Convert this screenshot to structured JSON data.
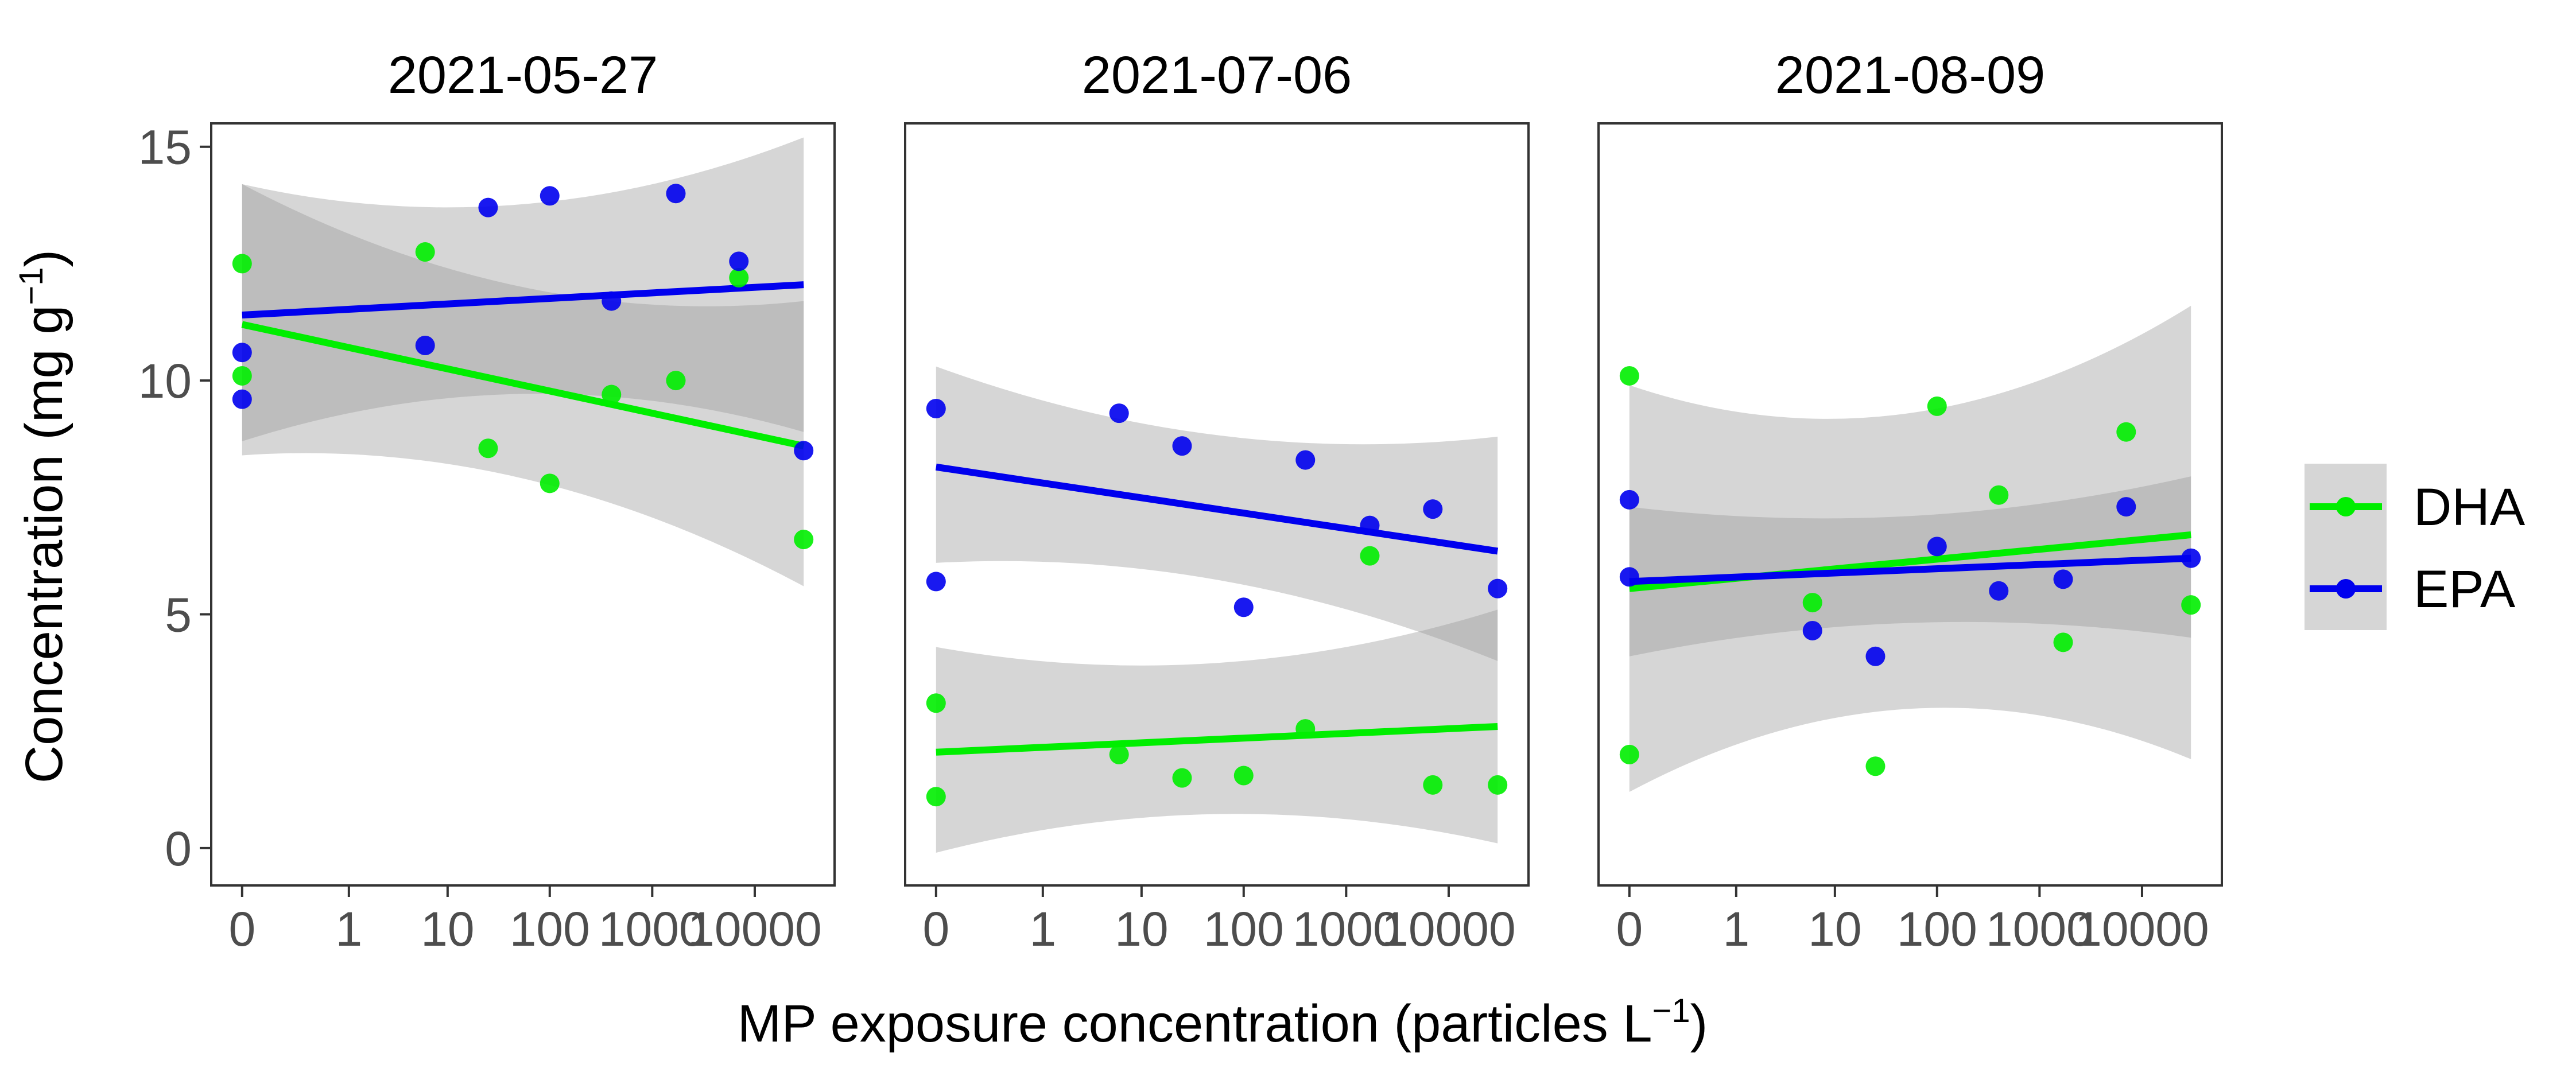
{
  "chart_data": {
    "type": "scatter",
    "xlabel": "MP exposure concentration (particles L",
    "xlabel_sup": "−1",
    "xlabel_end": ")",
    "ylabel": "Concentration (mg  g",
    "ylabel_sup": "−1",
    "ylabel_end": ")",
    "y_range": [
      -0.8,
      15.5
    ],
    "y_ticks": [
      0,
      5,
      10,
      15
    ],
    "x_scale": "log10(x+0.1)",
    "x_ticks": [
      0,
      1,
      10,
      100,
      1000,
      10000
    ],
    "x_tick_labels": [
      "0",
      "1",
      "10",
      "100",
      "1000",
      "10000"
    ],
    "x_range": [
      0,
      30000
    ],
    "x_levels": [
      0,
      6,
      25,
      100,
      400,
      1700,
      7000,
      30000
    ],
    "colors": {
      "DHA": "#00ee00",
      "EPA": "#0000ee",
      "band": "#999999"
    },
    "legend": {
      "position": "right",
      "entries": [
        "DHA",
        "EPA"
      ]
    },
    "panels": [
      {
        "title": "2021-05-27",
        "series": [
          {
            "name": "DHA",
            "points": [
              [
                0,
                12.5
              ],
              [
                0,
                10.1
              ],
              [
                6,
                12.75
              ],
              [
                25,
                8.55
              ],
              [
                100,
                7.8
              ],
              [
                400,
                9.7
              ],
              [
                1700,
                10.0
              ],
              [
                7000,
                12.2
              ],
              [
                30000,
                6.6
              ]
            ],
            "fit": [
              11.2,
              8.6
            ],
            "band_start": [
              8.4,
              14.2
            ],
            "band_end": [
              5.6,
              11.7
            ]
          },
          {
            "name": "EPA",
            "points": [
              [
                0,
                10.6
              ],
              [
                0,
                9.6
              ],
              [
                6,
                10.75
              ],
              [
                25,
                13.7
              ],
              [
                100,
                13.95
              ],
              [
                400,
                11.7
              ],
              [
                1700,
                14.0
              ],
              [
                7000,
                12.55
              ],
              [
                30000,
                8.5
              ]
            ],
            "fit": [
              11.4,
              12.05
            ],
            "band_start": [
              8.7,
              14.2
            ],
            "band_end": [
              8.9,
              15.2
            ]
          }
        ]
      },
      {
        "title": "2021-07-06",
        "series": [
          {
            "name": "DHA",
            "points": [
              [
                0,
                3.1
              ],
              [
                0,
                1.1
              ],
              [
                6,
                2.0
              ],
              [
                25,
                1.5
              ],
              [
                100,
                1.55
              ],
              [
                400,
                2.55
              ],
              [
                1700,
                6.25
              ],
              [
                7000,
                1.35
              ],
              [
                30000,
                1.35
              ]
            ],
            "fit": [
              2.05,
              2.6
            ],
            "band_start": [
              -0.1,
              4.3
            ],
            "band_end": [
              0.1,
              5.1
            ]
          },
          {
            "name": "EPA",
            "points": [
              [
                0,
                9.4
              ],
              [
                0,
                5.7
              ],
              [
                6,
                9.3
              ],
              [
                25,
                8.6
              ],
              [
                100,
                5.15
              ],
              [
                400,
                8.3
              ],
              [
                1700,
                6.9
              ],
              [
                7000,
                7.25
              ],
              [
                30000,
                5.55
              ]
            ],
            "fit": [
              8.15,
              6.35
            ],
            "band_start": [
              6.1,
              10.3
            ],
            "band_end": [
              4.0,
              8.8
            ]
          }
        ]
      },
      {
        "title": "2021-08-09",
        "series": [
          {
            "name": "DHA",
            "points": [
              [
                0,
                10.1
              ],
              [
                0,
                2.0
              ],
              [
                6,
                5.25
              ],
              [
                25,
                1.75
              ],
              [
                100,
                9.45
              ],
              [
                400,
                7.55
              ],
              [
                1700,
                4.4
              ],
              [
                7000,
                8.9
              ],
              [
                30000,
                5.2
              ]
            ],
            "fit": [
              5.55,
              6.7
            ],
            "band_start": [
              1.2,
              9.9
            ],
            "band_end": [
              1.9,
              11.6
            ]
          },
          {
            "name": "EPA",
            "points": [
              [
                0,
                7.45
              ],
              [
                0,
                5.8
              ],
              [
                6,
                4.65
              ],
              [
                25,
                4.1
              ],
              [
                100,
                6.45
              ],
              [
                400,
                5.5
              ],
              [
                1700,
                5.75
              ],
              [
                7000,
                7.3
              ],
              [
                30000,
                6.2
              ]
            ],
            "fit": [
              5.7,
              6.2
            ],
            "band_start": [
              4.1,
              7.3
            ],
            "band_end": [
              4.5,
              7.95
            ]
          }
        ]
      }
    ]
  }
}
